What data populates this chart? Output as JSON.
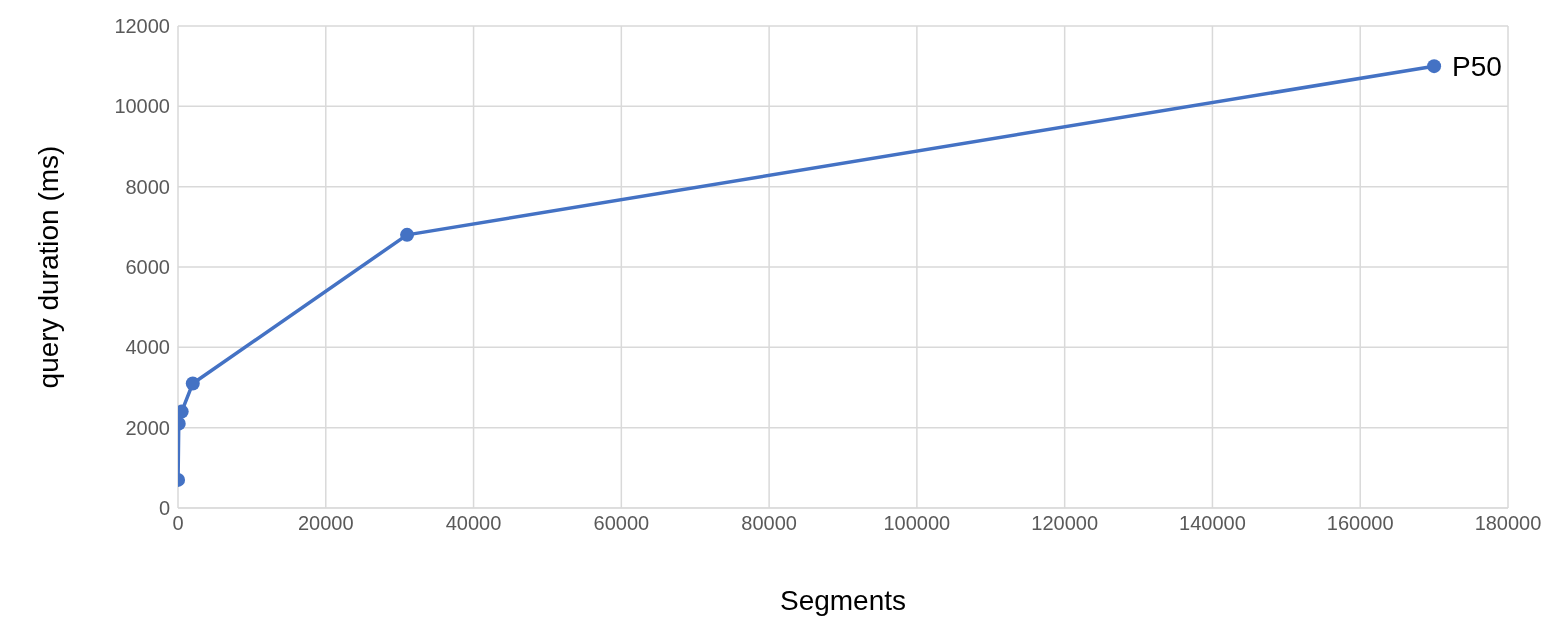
{
  "chart_data": {
    "type": "line",
    "xlabel": "Segments",
    "ylabel": "query duration (ms)",
    "series": [
      {
        "name": "P50",
        "color": "#4472c4",
        "x": [
          10,
          100,
          500,
          2000,
          31000,
          170000
        ],
        "values": [
          700,
          2100,
          2400,
          3100,
          6800,
          11000
        ]
      }
    ],
    "xlim": [
      0,
      180000
    ],
    "xticks": [
      0,
      20000,
      40000,
      60000,
      80000,
      100000,
      120000,
      140000,
      160000,
      180000
    ],
    "ylim": [
      0,
      12000
    ],
    "yticks": [
      0,
      2000,
      4000,
      6000,
      8000,
      10000,
      12000
    ],
    "grid": true,
    "legend": false,
    "marker": "circle",
    "line_style": "solid"
  }
}
